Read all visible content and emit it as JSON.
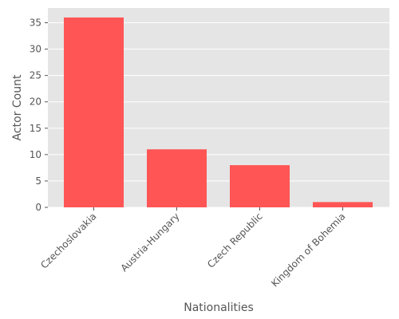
{
  "chart_data": {
    "type": "bar",
    "x_label": "Nationalities",
    "y_label": "Actor Count",
    "categories": [
      "Czechoslovakia",
      "Austria-Hungary",
      "Czech Republic",
      "Kingdom of Bohemia"
    ],
    "values": [
      36,
      11,
      8,
      1
    ],
    "color": "#ff5555",
    "ylim": [
      0,
      37.8
    ],
    "yticks": [
      0,
      5,
      10,
      15,
      20,
      25,
      30,
      35
    ],
    "grid": true
  }
}
